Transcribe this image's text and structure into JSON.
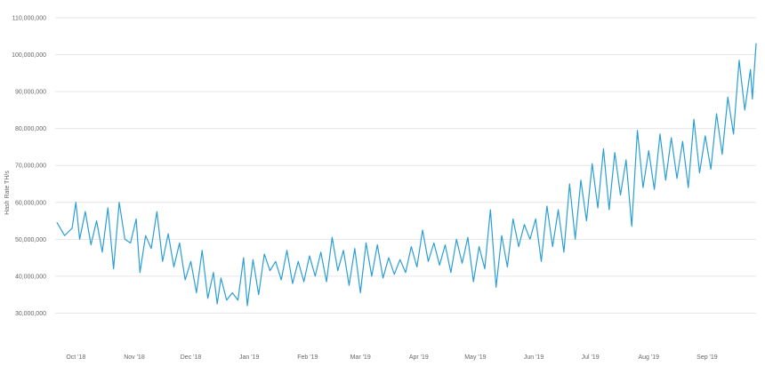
{
  "chart_data": {
    "type": "line",
    "title": "",
    "xlabel": "",
    "ylabel": "Hash Rate TH/s",
    "ylim": [
      20000000,
      110000000
    ],
    "yticks": [
      30000000,
      40000000,
      50000000,
      60000000,
      70000000,
      80000000,
      90000000,
      100000000,
      110000000
    ],
    "ytick_labels": [
      "30,000,000",
      "40,000,000",
      "50,000,000",
      "60,000,000",
      "70,000,000",
      "80,000,000",
      "90,000,000",
      "100,000,000",
      "110,000,000"
    ],
    "xlim": [
      "2018-09-20",
      "2019-09-27"
    ],
    "xticks": [
      {
        "label": "Oct '18",
        "date": "2018-10-01"
      },
      {
        "label": "Nov '18",
        "date": "2018-11-01"
      },
      {
        "label": "Dec '18",
        "date": "2018-12-01"
      },
      {
        "label": "Jan '19",
        "date": "2019-01-01"
      },
      {
        "label": "Feb '19",
        "date": "2019-02-01"
      },
      {
        "label": "Mar '19",
        "date": "2019-03-01"
      },
      {
        "label": "Apr '19",
        "date": "2019-04-01"
      },
      {
        "label": "May '19",
        "date": "2019-05-01"
      },
      {
        "label": "Jun '19",
        "date": "2019-06-01"
      },
      {
        "label": "Jul '19",
        "date": "2019-07-01"
      },
      {
        "label": "Aug '19",
        "date": "2019-08-01"
      },
      {
        "label": "Sep '19",
        "date": "2019-09-01"
      }
    ],
    "grid": true,
    "legend": "none",
    "series": [
      {
        "color": "#2a9fd6",
        "points": [
          [
            "2018-09-21",
            54500000
          ],
          [
            "2018-09-25",
            51000000
          ],
          [
            "2018-09-29",
            53000000
          ],
          [
            "2018-10-01",
            60000000
          ],
          [
            "2018-10-03",
            50000000
          ],
          [
            "2018-10-06",
            57500000
          ],
          [
            "2018-10-09",
            48500000
          ],
          [
            "2018-10-12",
            55000000
          ],
          [
            "2018-10-15",
            46500000
          ],
          [
            "2018-10-18",
            58500000
          ],
          [
            "2018-10-21",
            42000000
          ],
          [
            "2018-10-24",
            60000000
          ],
          [
            "2018-10-27",
            50000000
          ],
          [
            "2018-10-30",
            49000000
          ],
          [
            "2018-11-02",
            55500000
          ],
          [
            "2018-11-04",
            41000000
          ],
          [
            "2018-11-07",
            51000000
          ],
          [
            "2018-11-10",
            47500000
          ],
          [
            "2018-11-13",
            57500000
          ],
          [
            "2018-11-16",
            44000000
          ],
          [
            "2018-11-19",
            51500000
          ],
          [
            "2018-11-22",
            42500000
          ],
          [
            "2018-11-25",
            49000000
          ],
          [
            "2018-11-28",
            39000000
          ],
          [
            "2018-12-01",
            44000000
          ],
          [
            "2018-12-04",
            35500000
          ],
          [
            "2018-12-07",
            47000000
          ],
          [
            "2018-12-10",
            34000000
          ],
          [
            "2018-12-13",
            41000000
          ],
          [
            "2018-12-15",
            32500000
          ],
          [
            "2018-12-17",
            39500000
          ],
          [
            "2018-12-20",
            33500000
          ],
          [
            "2018-12-23",
            35500000
          ],
          [
            "2018-12-26",
            33500000
          ],
          [
            "2018-12-29",
            45000000
          ],
          [
            "2018-12-31",
            32000000
          ],
          [
            "2019-01-03",
            44500000
          ],
          [
            "2019-01-06",
            35000000
          ],
          [
            "2019-01-09",
            46000000
          ],
          [
            "2019-01-12",
            41500000
          ],
          [
            "2019-01-15",
            44000000
          ],
          [
            "2019-01-18",
            39000000
          ],
          [
            "2019-01-21",
            47000000
          ],
          [
            "2019-01-24",
            38000000
          ],
          [
            "2019-01-27",
            44000000
          ],
          [
            "2019-01-30",
            38500000
          ],
          [
            "2019-02-02",
            45500000
          ],
          [
            "2019-02-05",
            40000000
          ],
          [
            "2019-02-08",
            46500000
          ],
          [
            "2019-02-11",
            38500000
          ],
          [
            "2019-02-14",
            50500000
          ],
          [
            "2019-02-17",
            41500000
          ],
          [
            "2019-02-20",
            47000000
          ],
          [
            "2019-02-23",
            37500000
          ],
          [
            "2019-02-26",
            47500000
          ],
          [
            "2019-03-01",
            35500000
          ],
          [
            "2019-03-04",
            49000000
          ],
          [
            "2019-03-07",
            40000000
          ],
          [
            "2019-03-10",
            48500000
          ],
          [
            "2019-03-13",
            39500000
          ],
          [
            "2019-03-16",
            45000000
          ],
          [
            "2019-03-19",
            40500000
          ],
          [
            "2019-03-22",
            44500000
          ],
          [
            "2019-03-25",
            41000000
          ],
          [
            "2019-03-28",
            48000000
          ],
          [
            "2019-03-31",
            42500000
          ],
          [
            "2019-04-03",
            52500000
          ],
          [
            "2019-04-06",
            44000000
          ],
          [
            "2019-04-09",
            49000000
          ],
          [
            "2019-04-12",
            43000000
          ],
          [
            "2019-04-15",
            48500000
          ],
          [
            "2019-04-18",
            41000000
          ],
          [
            "2019-04-21",
            50000000
          ],
          [
            "2019-04-24",
            43500000
          ],
          [
            "2019-04-27",
            50500000
          ],
          [
            "2019-04-30",
            38500000
          ],
          [
            "2019-05-03",
            48000000
          ],
          [
            "2019-05-06",
            42000000
          ],
          [
            "2019-05-09",
            58000000
          ],
          [
            "2019-05-12",
            37000000
          ],
          [
            "2019-05-15",
            51000000
          ],
          [
            "2019-05-18",
            42500000
          ],
          [
            "2019-05-21",
            55500000
          ],
          [
            "2019-05-24",
            48000000
          ],
          [
            "2019-05-27",
            54000000
          ],
          [
            "2019-05-30",
            50000000
          ],
          [
            "2019-06-02",
            55500000
          ],
          [
            "2019-06-05",
            44000000
          ],
          [
            "2019-06-08",
            59000000
          ],
          [
            "2019-06-11",
            48000000
          ],
          [
            "2019-06-14",
            58000000
          ],
          [
            "2019-06-17",
            46500000
          ],
          [
            "2019-06-20",
            65000000
          ],
          [
            "2019-06-23",
            50000000
          ],
          [
            "2019-06-26",
            66000000
          ],
          [
            "2019-06-29",
            55000000
          ],
          [
            "2019-07-02",
            70500000
          ],
          [
            "2019-07-05",
            58500000
          ],
          [
            "2019-07-08",
            74500000
          ],
          [
            "2019-07-11",
            58000000
          ],
          [
            "2019-07-14",
            73500000
          ],
          [
            "2019-07-17",
            62000000
          ],
          [
            "2019-07-20",
            71500000
          ],
          [
            "2019-07-23",
            53500000
          ],
          [
            "2019-07-26",
            79500000
          ],
          [
            "2019-07-29",
            64000000
          ],
          [
            "2019-08-01",
            74000000
          ],
          [
            "2019-08-04",
            63500000
          ],
          [
            "2019-08-07",
            78500000
          ],
          [
            "2019-08-10",
            66000000
          ],
          [
            "2019-08-13",
            77500000
          ],
          [
            "2019-08-16",
            66500000
          ],
          [
            "2019-08-19",
            76500000
          ],
          [
            "2019-08-22",
            64000000
          ],
          [
            "2019-08-25",
            82500000
          ],
          [
            "2019-08-28",
            68000000
          ],
          [
            "2019-08-31",
            78000000
          ],
          [
            "2019-09-03",
            69000000
          ],
          [
            "2019-09-06",
            84000000
          ],
          [
            "2019-09-09",
            73000000
          ],
          [
            "2019-09-12",
            88500000
          ],
          [
            "2019-09-15",
            78500000
          ],
          [
            "2019-09-18",
            98500000
          ],
          [
            "2019-09-21",
            85000000
          ],
          [
            "2019-09-24",
            96000000
          ],
          [
            "2019-09-25",
            88000000
          ],
          [
            "2019-09-27",
            103000000
          ]
        ]
      }
    ]
  }
}
